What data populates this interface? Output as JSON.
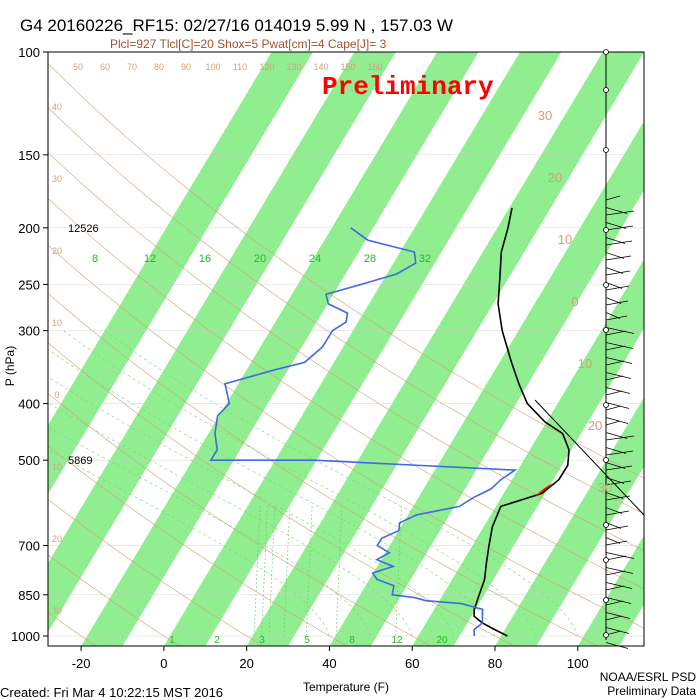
{
  "title": "G4 20160226_RF15: 02/27/16 014019   5.99 N , 157.03 W",
  "subtitle": "Plcl=927 Tlcl[C]=20 Shox=5 Pwat[cm]=4 Cape[J]= 3",
  "stamp": "Preliminary",
  "footer": {
    "created": "Created: Fri Mar  4 10:22:15 MST 2016",
    "org": "NOAA/ESRL PSD",
    "note": "Preliminary Data"
  },
  "chart_data": {
    "type": "line",
    "title": "G4 20160226_RF15: 02/27/16 014019   5.99 N , 157.03 W",
    "xlabel": "Temperature (F)",
    "ylabel": "P (hPa)",
    "xlim_at_1000hPa": [
      -28,
      116
    ],
    "ylim": [
      1000,
      100
    ],
    "x_ticks": [
      -20,
      0,
      20,
      40,
      60,
      80,
      100
    ],
    "y_ticks": [
      100,
      150,
      200,
      250,
      300,
      400,
      500,
      700,
      850,
      1000
    ],
    "pressure_label_values": [
      {
        "p": 200,
        "label": "12526"
      },
      {
        "p": 500,
        "label": "5869"
      }
    ],
    "mixing_ratio_labels": [
      "8",
      "12",
      "16",
      "20",
      "24",
      "28",
      "32"
    ],
    "bottom_axis_labels": [
      "1",
      "2",
      "3",
      "5",
      "8",
      "12",
      "20"
    ],
    "right_side_labels": [
      "30",
      "20",
      "10",
      "0",
      "10",
      "20",
      "30"
    ],
    "top_labels": [
      "50",
      "60",
      "70",
      "80",
      "90",
      "100",
      "110",
      "120",
      "130",
      "140",
      "150",
      "160"
    ],
    "left_side_labels": [
      "40",
      "30",
      "20",
      "10",
      "0",
      "10",
      "20",
      "30"
    ],
    "series": [
      {
        "color": "#000000",
        "points": [
          [
            1000,
            83
          ],
          [
            975,
            79
          ],
          [
            950,
            75
          ],
          [
            925,
            72
          ],
          [
            900,
            71
          ],
          [
            850,
            70
          ],
          [
            800,
            69
          ],
          [
            750,
            67
          ],
          [
            700,
            65
          ],
          [
            650,
            63
          ],
          [
            600,
            62
          ],
          [
            570,
            70
          ],
          [
            540,
            72
          ],
          [
            510,
            72
          ],
          [
            480,
            70
          ],
          [
            450,
            66
          ],
          [
            430,
            60
          ],
          [
            400,
            53
          ],
          [
            370,
            48
          ],
          [
            340,
            43
          ],
          [
            300,
            36
          ],
          [
            270,
            31
          ],
          [
            240,
            27
          ],
          [
            220,
            24
          ],
          [
            200,
            22
          ],
          [
            185,
            20
          ]
        ]
      },
      {
        "color": "#ff0000",
        "points": [
          [
            575,
            69
          ],
          [
            560,
            70
          ],
          [
            550,
            71
          ]
        ]
      },
      {
        "color": "#4169e1",
        "points": [
          [
            1000,
            75
          ],
          [
            975,
            74
          ],
          [
            950,
            75
          ],
          [
            925,
            74
          ],
          [
            900,
            73
          ],
          [
            880,
            67
          ],
          [
            870,
            58
          ],
          [
            860,
            55
          ],
          [
            850,
            49
          ],
          [
            820,
            48
          ],
          [
            800,
            43
          ],
          [
            780,
            41
          ],
          [
            760,
            45
          ],
          [
            740,
            40
          ],
          [
            720,
            42
          ],
          [
            700,
            38
          ],
          [
            680,
            38
          ],
          [
            660,
            41
          ],
          [
            640,
            40
          ],
          [
            620,
            43
          ],
          [
            600,
            52
          ],
          [
            580,
            54
          ],
          [
            560,
            57
          ],
          [
            540,
            58
          ],
          [
            520,
            60
          ],
          [
            500,
            10
          ],
          [
            500,
            -15
          ],
          [
            480,
            -15
          ],
          [
            450,
            -18
          ],
          [
            420,
            -20
          ],
          [
            400,
            -19
          ],
          [
            370,
            -23
          ],
          [
            350,
            -13
          ],
          [
            340,
            -7
          ],
          [
            320,
            -5
          ],
          [
            300,
            -5
          ],
          [
            290,
            -3
          ],
          [
            280,
            -4
          ],
          [
            270,
            -10
          ],
          [
            260,
            -12
          ],
          [
            250,
            -5
          ],
          [
            240,
            2
          ],
          [
            230,
            5
          ],
          [
            220,
            3
          ],
          [
            210,
            -10
          ],
          [
            200,
            -16
          ]
        ]
      }
    ],
    "grid": true,
    "legend": "none"
  }
}
